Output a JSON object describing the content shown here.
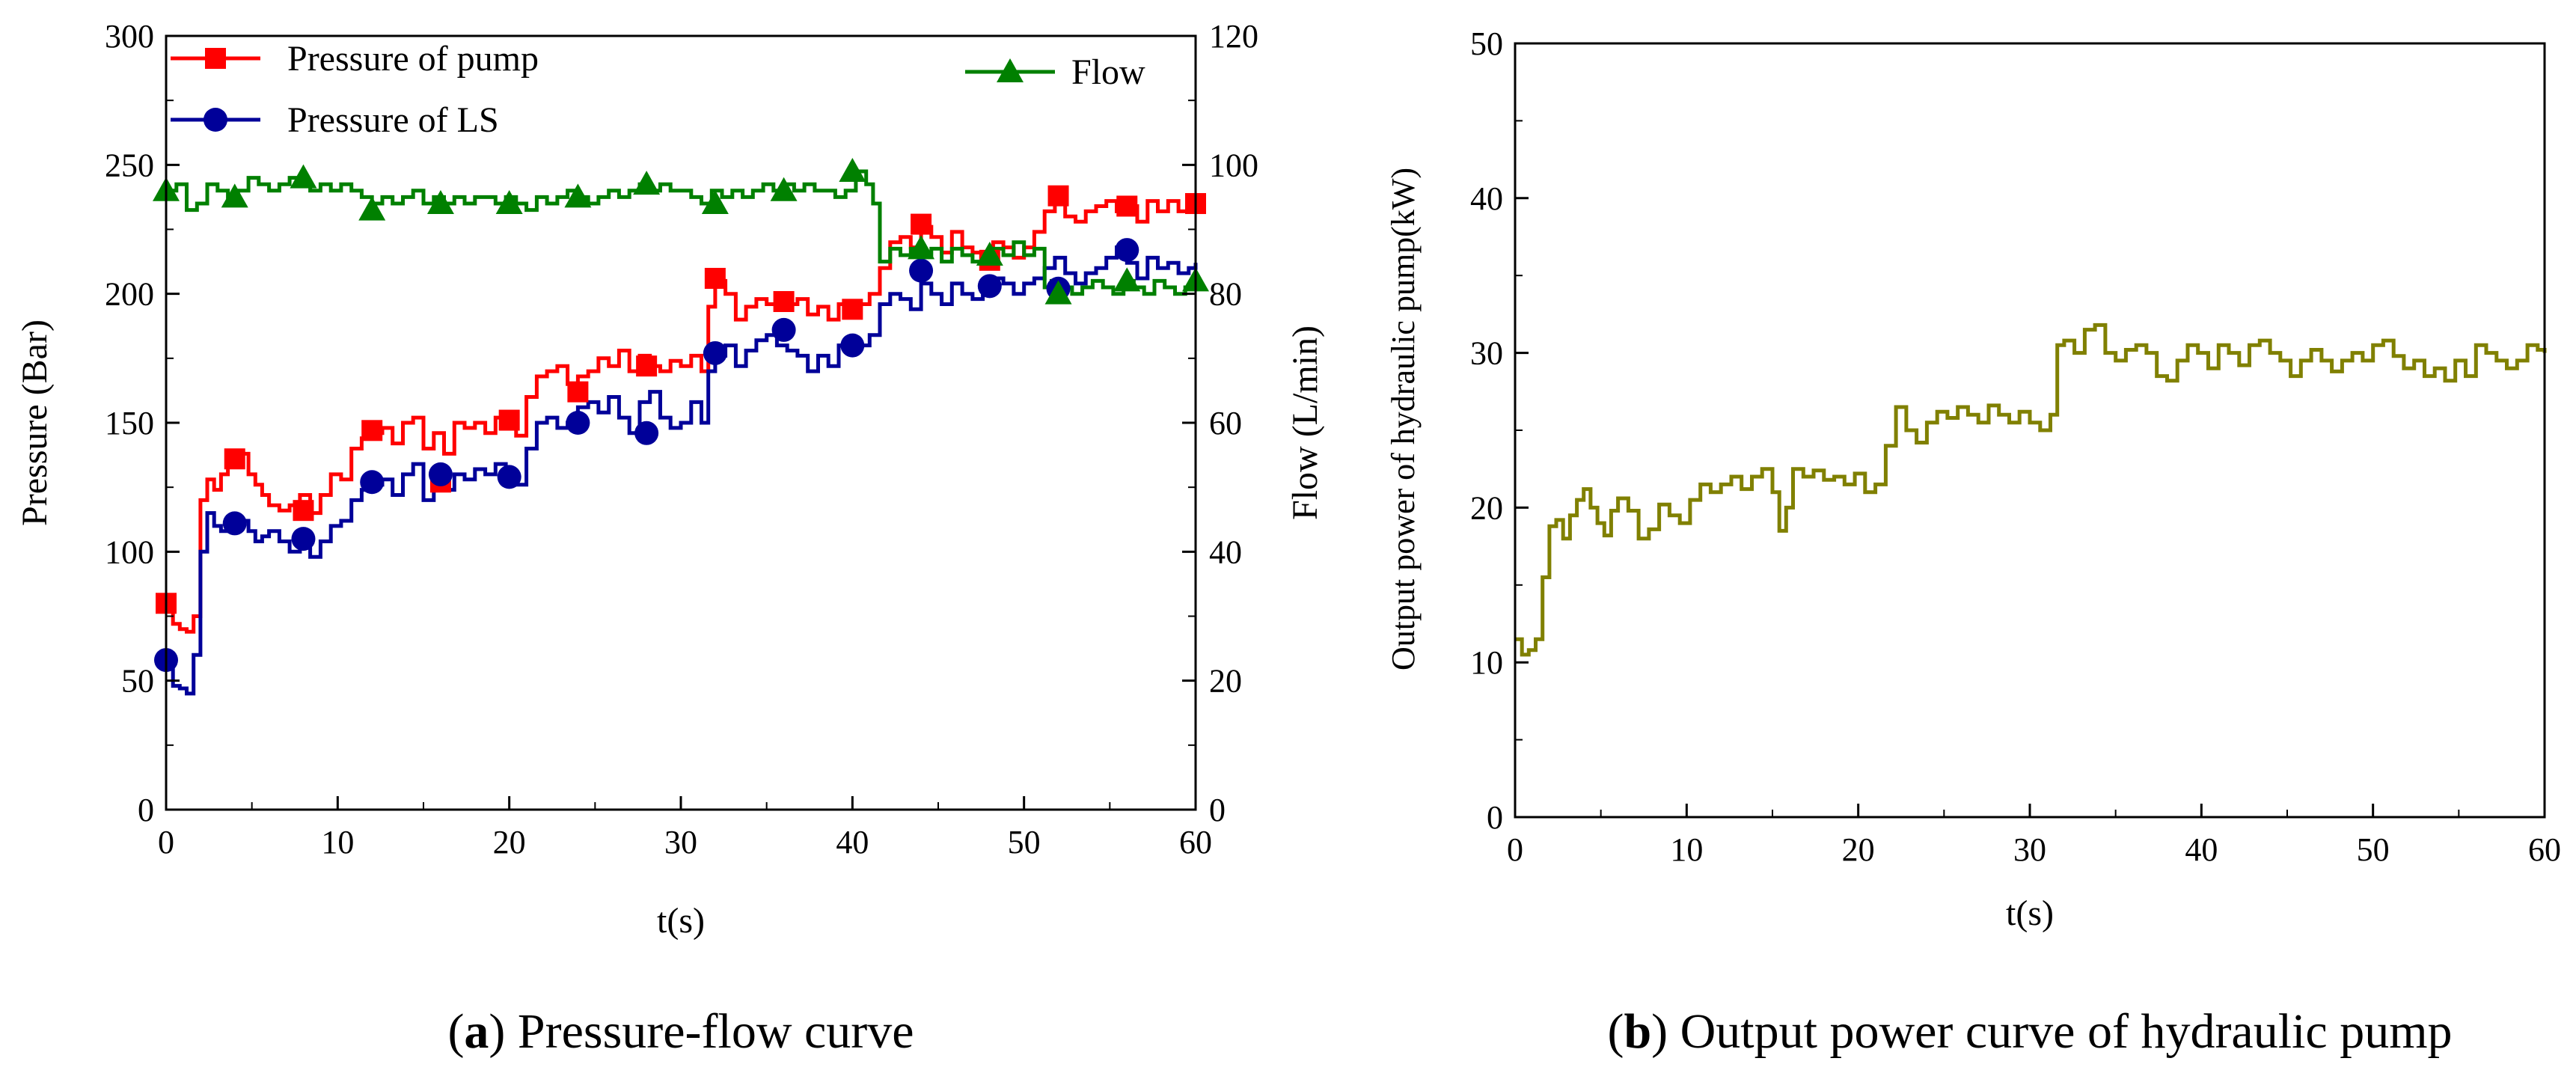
{
  "colors": {
    "pump": "#ff0000",
    "ls": "#000099",
    "flow": "#008000",
    "power": "#808000",
    "axis": "#000000"
  },
  "chart_data": [
    {
      "id": "a",
      "type": "line",
      "caption_letter": "a",
      "caption_text": "Pressure-flow curve",
      "xlabel": "t(s)",
      "ylabel": "Pressure (Bar)",
      "y2label": "Flow (L/min)",
      "xlim": [
        0,
        60
      ],
      "ylim": [
        0,
        300
      ],
      "y2lim": [
        0,
        120
      ],
      "xticks": [
        "0",
        "10",
        "20",
        "30",
        "40",
        "50",
        "60"
      ],
      "yticks": [
        "0",
        "50",
        "100",
        "150",
        "200",
        "250",
        "300"
      ],
      "y2ticks": [
        "0",
        "20",
        "40",
        "60",
        "80",
        "100",
        "120"
      ],
      "series": [
        {
          "name": "Pressure of pump",
          "axis": "left",
          "marker": "square",
          "x": [
            0,
            0.4,
            0.8,
            1.2,
            1.6,
            2.0,
            2.4,
            2.8,
            3.2,
            3.6,
            4.0,
            4.4,
            4.8,
            5.2,
            5.6,
            6.0,
            6.6,
            7.2,
            7.8,
            8.4,
            9.0,
            9.6,
            10.2,
            10.8,
            11.4,
            12.0,
            12.6,
            13.2,
            13.8,
            14.4,
            15.0,
            15.6,
            16.2,
            16.8,
            17.4,
            18.0,
            18.6,
            19.2,
            19.8,
            20.4,
            21.0,
            21.6,
            22.2,
            22.8,
            23.4,
            24.0,
            24.6,
            25.2,
            25.8,
            26.4,
            27.0,
            27.6,
            28.2,
            28.8,
            29.4,
            30.0,
            30.6,
            31.2,
            31.6,
            32.0,
            32.6,
            33.2,
            33.8,
            34.4,
            35.0,
            35.6,
            36.2,
            36.8,
            37.4,
            38.0,
            38.6,
            39.2,
            39.8,
            40.4,
            41.0,
            41.6,
            42.2,
            42.8,
            43.4,
            44.0,
            44.6,
            45.2,
            45.8,
            46.4,
            47.0,
            47.6,
            48.2,
            48.8,
            49.4,
            50.0,
            50.6,
            51.2,
            51.8,
            52.4,
            53.0,
            53.6,
            54.2,
            54.8,
            55.4,
            56.0,
            56.6,
            57.2,
            57.8,
            58.4,
            59.0,
            59.6,
            60.0
          ],
          "values": [
            80,
            72,
            70,
            69,
            75,
            120,
            128,
            124,
            130,
            136,
            135,
            138,
            130,
            126,
            122,
            118,
            116,
            118,
            122,
            115,
            122,
            130,
            128,
            140,
            144,
            146,
            148,
            142,
            150,
            152,
            140,
            146,
            138,
            150,
            148,
            150,
            146,
            152,
            150,
            145,
            160,
            168,
            170,
            172,
            165,
            168,
            170,
            175,
            172,
            178,
            170,
            176,
            172,
            170,
            174,
            172,
            176,
            170,
            195,
            205,
            200,
            190,
            195,
            198,
            196,
            194,
            196,
            198,
            192,
            195,
            190,
            196,
            194,
            196,
            200,
            210,
            220,
            222,
            218,
            226,
            222,
            216,
            224,
            218,
            216,
            214,
            220,
            218,
            214,
            218,
            224,
            232,
            236,
            230,
            228,
            232,
            234,
            236,
            232,
            234,
            228,
            236,
            232,
            236,
            232,
            234,
            235
          ],
          "marker_x": [
            0,
            4,
            8,
            12,
            16,
            20,
            24,
            28,
            32,
            36,
            40,
            44,
            48,
            52,
            56,
            60
          ],
          "marker_values": [
            80,
            136,
            116,
            147,
            127,
            151,
            162,
            172,
            206,
            197,
            194,
            227,
            213,
            238,
            234,
            235
          ]
        },
        {
          "name": "Pressure of LS",
          "axis": "left",
          "marker": "circle",
          "x": [
            0,
            0.4,
            0.8,
            1.2,
            1.6,
            2.0,
            2.4,
            2.8,
            3.2,
            3.6,
            4.0,
            4.4,
            4.8,
            5.2,
            5.6,
            6.0,
            6.6,
            7.2,
            7.8,
            8.4,
            9.0,
            9.6,
            10.2,
            10.8,
            11.4,
            12.0,
            12.6,
            13.2,
            13.8,
            14.4,
            15.0,
            15.6,
            16.2,
            16.8,
            17.4,
            18.0,
            18.6,
            19.2,
            19.8,
            20.4,
            21.0,
            21.6,
            22.2,
            22.8,
            23.4,
            24.0,
            24.6,
            25.2,
            25.8,
            26.4,
            27.0,
            27.6,
            28.2,
            28.8,
            29.4,
            30.0,
            30.6,
            31.2,
            31.6,
            32.0,
            32.6,
            33.2,
            33.8,
            34.4,
            35.0,
            35.6,
            36.2,
            36.8,
            37.4,
            38.0,
            38.6,
            39.2,
            39.8,
            40.4,
            41.0,
            41.6,
            42.2,
            42.8,
            43.4,
            44.0,
            44.6,
            45.2,
            45.8,
            46.4,
            47.0,
            47.6,
            48.2,
            48.8,
            49.4,
            50.0,
            50.6,
            51.2,
            51.8,
            52.4,
            53.0,
            53.6,
            54.2,
            54.8,
            55.4,
            56.0,
            56.6,
            57.2,
            57.8,
            58.4,
            59.0,
            59.6,
            60.0
          ],
          "values": [
            55,
            48,
            47,
            45,
            60,
            100,
            115,
            110,
            108,
            112,
            110,
            112,
            108,
            104,
            106,
            108,
            104,
            100,
            105,
            98,
            104,
            110,
            112,
            120,
            124,
            126,
            128,
            122,
            130,
            134,
            120,
            128,
            124,
            130,
            128,
            132,
            130,
            134,
            128,
            126,
            140,
            150,
            152,
            148,
            150,
            156,
            158,
            154,
            160,
            152,
            146,
            158,
            162,
            152,
            148,
            150,
            158,
            150,
            170,
            176,
            180,
            172,
            178,
            182,
            184,
            180,
            178,
            176,
            170,
            176,
            172,
            180,
            178,
            180,
            184,
            196,
            200,
            198,
            194,
            204,
            200,
            196,
            204,
            200,
            198,
            202,
            206,
            204,
            200,
            204,
            206,
            210,
            214,
            208,
            204,
            208,
            210,
            214,
            218,
            212,
            206,
            214,
            210,
            212,
            208,
            210,
            212
          ],
          "marker_x": [
            0,
            4,
            8,
            12,
            16,
            20,
            24,
            28,
            32,
            36,
            40,
            44,
            48,
            52,
            56
          ],
          "marker_values": [
            58,
            111,
            105,
            127,
            130,
            129,
            150,
            146,
            177,
            186,
            180,
            209,
            203,
            202,
            217
          ]
        },
        {
          "name": "Flow",
          "axis": "right",
          "marker": "triangle",
          "x": [
            0,
            0.6,
            1.2,
            1.8,
            2.4,
            3.0,
            3.6,
            4.2,
            4.8,
            5.4,
            6.0,
            6.6,
            7.2,
            7.8,
            8.4,
            9.0,
            9.6,
            10.2,
            10.8,
            11.4,
            12.0,
            12.6,
            13.2,
            13.8,
            14.4,
            15.0,
            15.6,
            16.2,
            16.8,
            17.4,
            18.0,
            18.6,
            19.2,
            19.8,
            20.4,
            21.0,
            21.6,
            22.2,
            22.8,
            23.4,
            24.0,
            24.6,
            25.2,
            25.8,
            26.4,
            27.0,
            27.6,
            28.2,
            28.8,
            29.4,
            30.0,
            30.6,
            31.2,
            31.8,
            32.4,
            33.0,
            33.6,
            34.2,
            34.8,
            35.4,
            36.0,
            36.6,
            37.2,
            37.8,
            38.4,
            39.0,
            39.6,
            40.2,
            40.8,
            41.2,
            41.6,
            42.2,
            42.8,
            43.4,
            44.0,
            44.6,
            45.2,
            45.8,
            46.4,
            47.0,
            47.6,
            48.2,
            48.8,
            49.4,
            50.0,
            50.6,
            51.2,
            51.6,
            52.2,
            52.8,
            53.4,
            54.0,
            54.6,
            55.2,
            55.8,
            56.4,
            57.0,
            57.6,
            58.2,
            58.8,
            59.4,
            60.0
          ],
          "values": [
            96,
            97,
            93,
            94,
            97,
            96,
            95,
            96,
            98,
            97,
            96,
            97,
            98,
            97,
            96,
            97,
            96,
            97,
            96,
            95,
            94,
            95,
            94,
            95,
            96,
            94,
            95,
            94,
            95,
            94,
            95,
            95,
            94,
            95,
            94,
            93,
            95,
            94,
            95,
            96,
            95,
            94,
            95,
            96,
            95,
            96,
            97,
            96,
            97,
            96,
            96,
            95,
            94,
            96,
            95,
            96,
            95,
            96,
            97,
            96,
            97,
            96,
            97,
            96,
            96,
            95,
            96,
            99,
            97,
            94,
            85,
            87,
            86,
            87,
            86,
            87,
            85,
            87,
            86,
            85,
            86,
            87,
            86,
            88,
            86,
            87,
            81,
            82,
            81,
            80,
            81,
            82,
            81,
            80,
            82,
            81,
            80,
            82,
            81,
            80,
            81,
            82
          ],
          "marker_x": [
            0,
            4,
            8,
            12,
            16,
            20,
            24,
            28,
            32,
            36,
            40,
            44,
            48,
            52,
            56,
            60
          ],
          "marker_values": [
            96,
            95,
            98,
            93,
            94,
            94,
            95,
            97,
            94,
            96,
            99,
            87,
            86,
            80,
            82,
            82
          ]
        }
      ],
      "legend": [
        {
          "label": "Pressure of pump",
          "series": 0,
          "placement": "top-left"
        },
        {
          "label": "Pressure of LS",
          "series": 1,
          "placement": "top-left"
        },
        {
          "label": "Flow",
          "series": 2,
          "placement": "top-right"
        }
      ]
    },
    {
      "id": "b",
      "type": "line",
      "caption_letter": "b",
      "caption_text": "Output power curve of hydraulic pump",
      "xlabel": "t(s)",
      "ylabel": "Output power of hydraulic pump(kW)",
      "xlim": [
        0,
        60
      ],
      "ylim": [
        0,
        50
      ],
      "xticks": [
        "0",
        "10",
        "20",
        "30",
        "40",
        "50",
        "60"
      ],
      "yticks": [
        "0",
        "10",
        "20",
        "30",
        "40",
        "50"
      ],
      "series": [
        {
          "name": "Output power",
          "x": [
            0,
            0.4,
            0.8,
            1.2,
            1.6,
            2.0,
            2.4,
            2.8,
            3.2,
            3.6,
            4.0,
            4.4,
            4.8,
            5.2,
            5.6,
            6.0,
            6.6,
            7.2,
            7.8,
            8.4,
            9.0,
            9.6,
            10.2,
            10.8,
            11.4,
            12.0,
            12.6,
            13.2,
            13.8,
            14.4,
            15.0,
            15.4,
            15.8,
            16.2,
            16.8,
            17.4,
            18.0,
            18.6,
            19.2,
            19.8,
            20.4,
            21.0,
            21.6,
            22.2,
            22.8,
            23.4,
            24.0,
            24.6,
            25.2,
            25.8,
            26.4,
            27.0,
            27.6,
            28.2,
            28.8,
            29.4,
            30.0,
            30.6,
            31.2,
            31.6,
            32.0,
            32.6,
            33.2,
            33.8,
            34.4,
            35.0,
            35.6,
            36.2,
            36.8,
            37.4,
            38.0,
            38.6,
            39.2,
            39.8,
            40.4,
            41.0,
            41.6,
            42.2,
            42.8,
            43.4,
            44.0,
            44.6,
            45.2,
            45.8,
            46.4,
            47.0,
            47.6,
            48.2,
            48.8,
            49.4,
            50.0,
            50.6,
            51.2,
            51.8,
            52.4,
            53.0,
            53.6,
            54.2,
            54.8,
            55.4,
            56.0,
            56.6,
            57.2,
            57.8,
            58.4,
            59.0,
            59.6,
            60.0
          ],
          "values": [
            11.5,
            10.5,
            10.8,
            11.5,
            15.5,
            18.8,
            19.2,
            18.0,
            19.5,
            20.5,
            21.2,
            20.0,
            19.0,
            18.2,
            19.8,
            20.6,
            19.8,
            18.0,
            18.6,
            20.2,
            19.5,
            19.0,
            20.5,
            21.5,
            21.0,
            21.5,
            22.0,
            21.2,
            22.0,
            22.5,
            21.0,
            18.5,
            20.0,
            22.5,
            22.0,
            22.4,
            21.8,
            22.0,
            21.5,
            22.2,
            21.0,
            21.5,
            24.0,
            26.5,
            25.0,
            24.2,
            25.5,
            26.2,
            25.8,
            26.5,
            26.0,
            25.5,
            26.6,
            26.0,
            25.5,
            26.2,
            25.5,
            25.0,
            26.0,
            30.5,
            30.8,
            30.0,
            31.5,
            31.8,
            30.0,
            29.5,
            30.2,
            30.5,
            30.0,
            28.5,
            28.2,
            29.5,
            30.5,
            30.0,
            29.0,
            30.5,
            30.0,
            29.2,
            30.5,
            30.8,
            30.0,
            29.5,
            28.5,
            29.5,
            30.2,
            29.5,
            28.8,
            29.5,
            30.0,
            29.5,
            30.5,
            30.8,
            29.8,
            29.0,
            29.5,
            28.5,
            29.0,
            28.2,
            29.5,
            28.5,
            30.5,
            30.0,
            29.5,
            29.0,
            29.5,
            30.5,
            30.2,
            30.0
          ]
        }
      ]
    }
  ]
}
